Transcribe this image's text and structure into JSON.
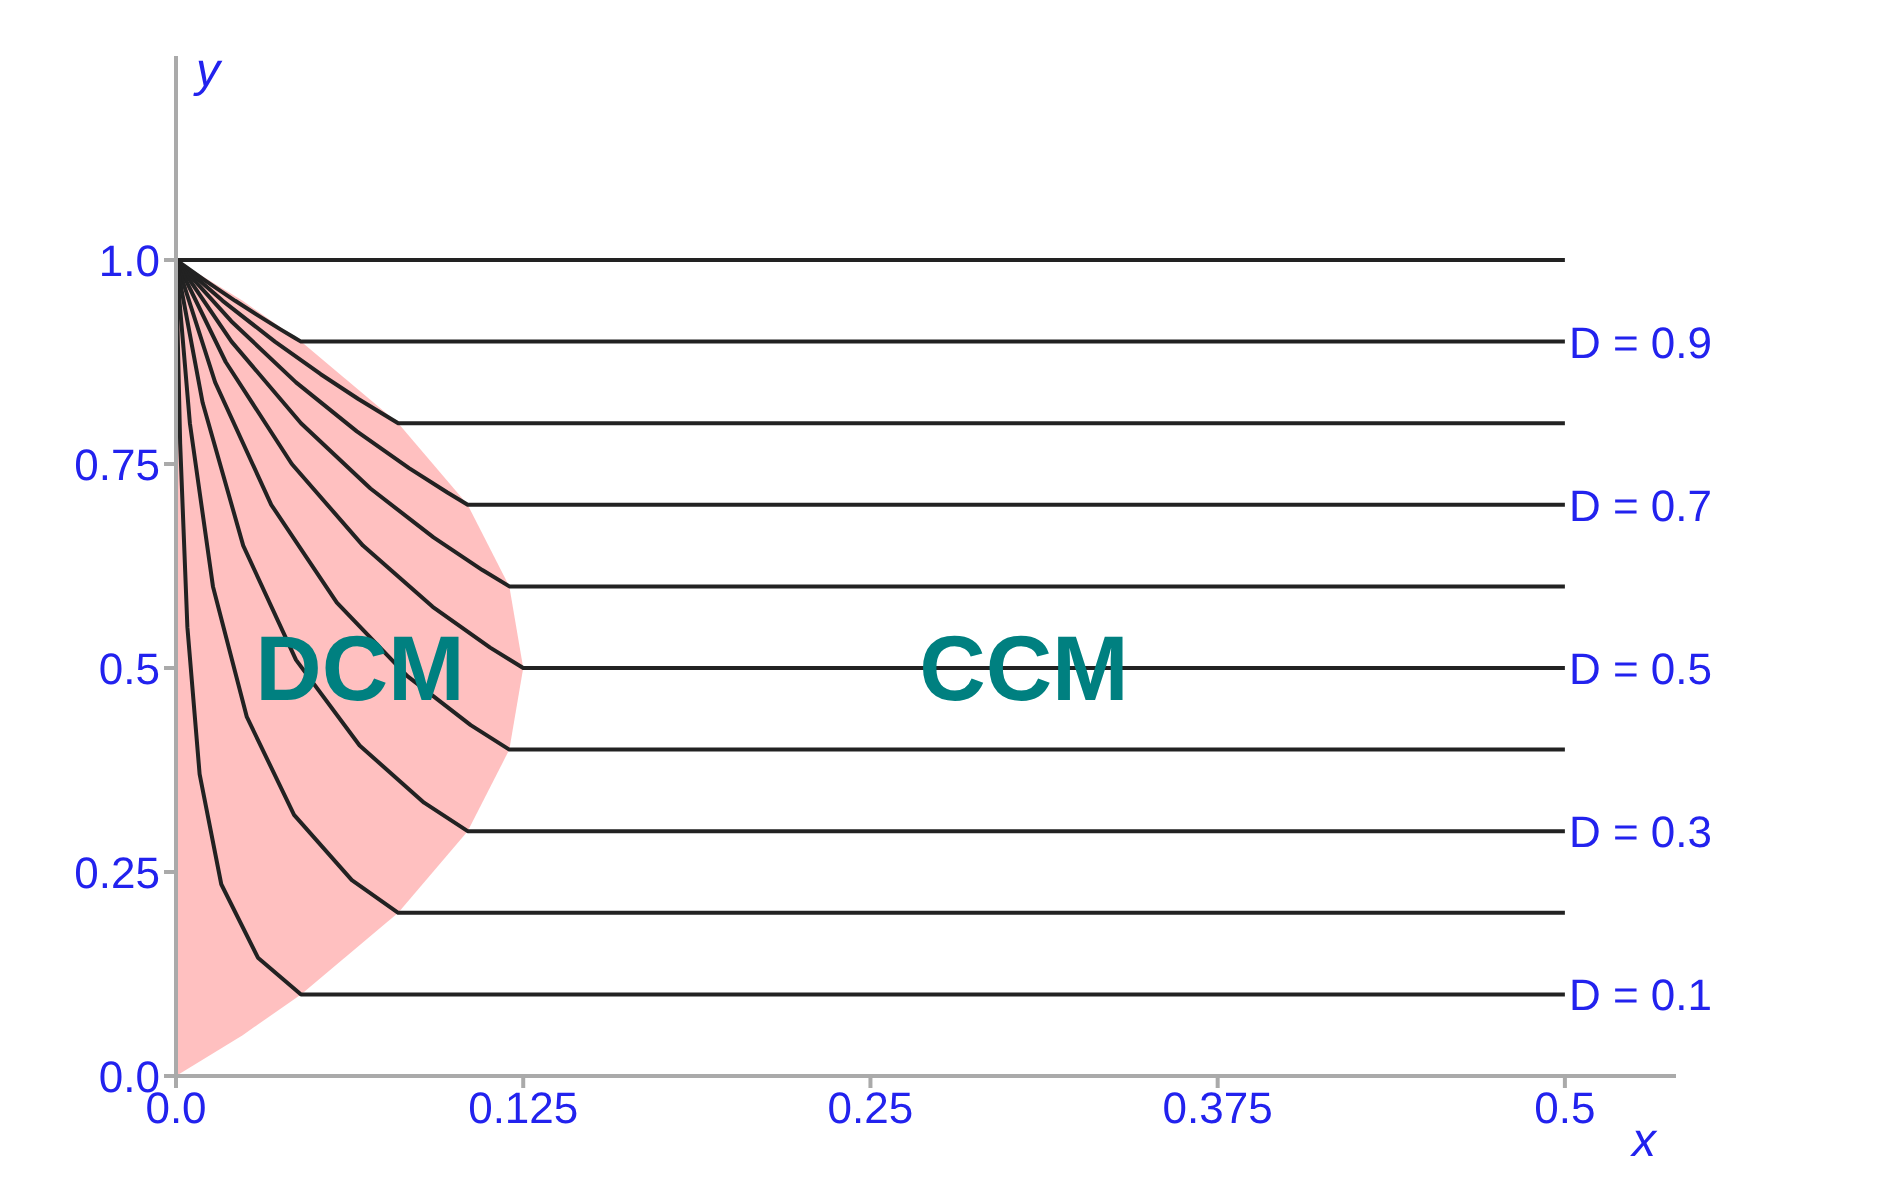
{
  "chart_data": {
    "type": "line",
    "xlabel": "x",
    "ylabel": "y",
    "xlim": [
      0,
      0.54
    ],
    "ylim": [
      0,
      1.25
    ],
    "xticks": [
      {
        "value": 0,
        "label": "0.0"
      },
      0.125,
      0.25,
      0.375,
      0.5
    ],
    "yticks": [
      {
        "value": 0,
        "label": "0.0"
      },
      0.25,
      0.5,
      0.75,
      {
        "value": 1,
        "label": "1.0"
      }
    ],
    "grid": false,
    "legend": false,
    "marker": "none",
    "line_style": "solid",
    "annotations": [
      "DCM",
      "CCM"
    ],
    "series": [
      {
        "type": "area",
        "color": "#ffc0c0",
        "x": [
          0,
          0.024,
          0.045,
          0.08,
          0.105,
          0.12,
          0.125,
          0.12,
          0.105,
          0.08,
          0.045,
          0.024,
          0
        ],
        "values": [
          0,
          0.05,
          0.1,
          0.2,
          0.3,
          0.4,
          0.5,
          0.6,
          0.7,
          0.8,
          0.9,
          0.95,
          1
        ]
      },
      {
        "color": "#222222",
        "x": [
          0,
          0.5
        ],
        "values": [
          1,
          1
        ]
      },
      {
        "name": "D = 0.9",
        "color": "#222222",
        "x": [
          0,
          0.0104,
          0.0213,
          0.0305,
          0.0376,
          0.0425,
          0.045,
          0.5
        ],
        "values": [
          1,
          0.975,
          0.95,
          0.93,
          0.915,
          0.905,
          0.9,
          0.9
        ]
      },
      {
        "color": "#222222",
        "x": [
          0,
          0.0168,
          0.0356,
          0.0521,
          0.0655,
          0.0751,
          0.08,
          0.5
        ],
        "values": [
          1,
          0.95,
          0.9,
          0.86,
          0.83,
          0.81,
          0.8,
          0.8
        ]
      },
      {
        "name": "D = 0.7",
        "color": "#222222",
        "x": [
          0,
          0.0199,
          0.0432,
          0.0651,
          0.0839,
          0.0977,
          0.105,
          0.5
        ],
        "values": [
          1,
          0.925,
          0.85,
          0.79,
          0.745,
          0.715,
          0.7,
          0.7
        ]
      },
      {
        "color": "#222222",
        "x": [
          0,
          0.02,
          0.045,
          0.07,
          0.0927,
          0.1103,
          0.12,
          0.5
        ],
        "values": [
          1,
          0.9,
          0.8,
          0.72,
          0.66,
          0.62,
          0.6,
          0.6
        ]
      },
      {
        "name": "D = 0.5",
        "color": "#222222",
        "x": [
          0,
          0.0179,
          0.0417,
          0.0673,
          0.0924,
          0.1131,
          0.125,
          0.5
        ],
        "values": [
          1,
          0.875,
          0.75,
          0.65,
          0.575,
          0.525,
          0.5,
          0.5
        ]
      },
      {
        "color": "#222222",
        "x": [
          0,
          0.0141,
          0.0343,
          0.0579,
          0.0833,
          0.1061,
          0.12,
          0.5
        ],
        "values": [
          1,
          0.85,
          0.7,
          0.58,
          0.49,
          0.43,
          0.4,
          0.4
        ]
      },
      {
        "name": "D = 0.3",
        "color": "#222222",
        "x": [
          0,
          0.0096,
          0.0242,
          0.0432,
          0.0661,
          0.0893,
          0.105,
          0.5
        ],
        "values": [
          1,
          0.825,
          0.65,
          0.51,
          0.405,
          0.335,
          0.3,
          0.3
        ]
      },
      {
        "color": "#222222",
        "x": [
          0,
          0.005,
          0.0133,
          0.0255,
          0.0425,
          0.0633,
          0.08,
          0.5
        ],
        "values": [
          1,
          0.8,
          0.6,
          0.44,
          0.32,
          0.24,
          0.2,
          0.2
        ]
      },
      {
        "name": "D = 0.1",
        "color": "#222222",
        "x": [
          0,
          0.0015,
          0.0041,
          0.0085,
          0.0163,
          0.0295,
          0.045,
          0.5
        ],
        "values": [
          1,
          0.775,
          0.55,
          0.37,
          0.235,
          0.145,
          0.1,
          0.1
        ]
      }
    ]
  }
}
